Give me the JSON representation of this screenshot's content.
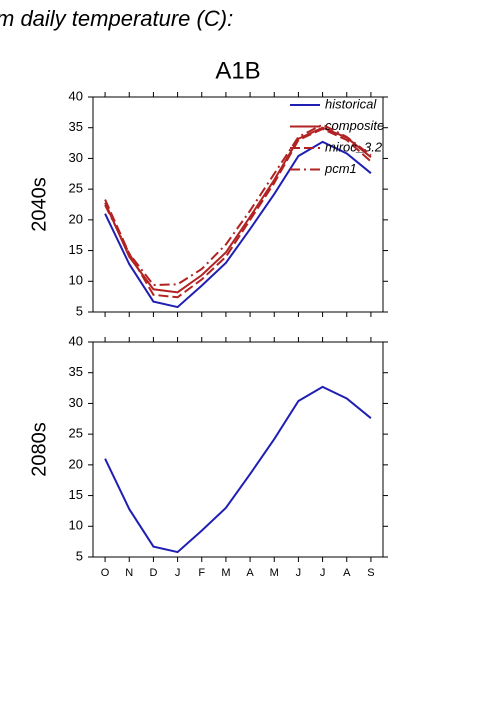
{
  "caption": "m daily temperature (C):",
  "chart_data": [
    {
      "type": "line",
      "title": "A1B",
      "ylabel": "2040s",
      "ylim": [
        5,
        40
      ],
      "yticks": [
        5,
        10,
        15,
        20,
        25,
        30,
        35,
        40
      ],
      "legend": "upper right",
      "series": [
        {
          "name": "historical",
          "color": "#1f1fb4",
          "style": "solid",
          "values": [
            21,
            12.8,
            6.7,
            5.8,
            9.3,
            13,
            18.5,
            24.2,
            30.4,
            32.7,
            30.8,
            27.6
          ]
        },
        {
          "name": "composite",
          "color": "#b22222",
          "style": "solid",
          "values": [
            22.8,
            14,
            8.7,
            8.2,
            11,
            14.7,
            20.5,
            26.5,
            33.2,
            35,
            33.4,
            30.2
          ]
        },
        {
          "name": "miroc_3.2",
          "color": "#b22222",
          "style": "dashed",
          "values": [
            23.3,
            14.5,
            7.8,
            7.4,
            10.3,
            14,
            20,
            26,
            33,
            34.8,
            33,
            29.5
          ]
        },
        {
          "name": "pcm1",
          "color": "#b22222",
          "style": "dashdot",
          "values": [
            22.4,
            14.5,
            9.4,
            9.5,
            12,
            16,
            21.5,
            27.5,
            33.5,
            35.5,
            33.5,
            30.5
          ]
        }
      ]
    },
    {
      "type": "line",
      "ylabel": "2080s",
      "categories": [
        "O",
        "N",
        "D",
        "J",
        "F",
        "M",
        "A",
        "M",
        "J",
        "J",
        "A",
        "S"
      ],
      "ylim": [
        5,
        40
      ],
      "yticks": [
        5,
        10,
        15,
        20,
        25,
        30,
        35,
        40
      ],
      "series": [
        {
          "color": "#1f1fb4",
          "style": "solid",
          "values": [
            21,
            12.8,
            6.7,
            5.8,
            9.3,
            13,
            18.5,
            24.2,
            30.4,
            32.7,
            30.8,
            27.6
          ]
        }
      ]
    }
  ]
}
